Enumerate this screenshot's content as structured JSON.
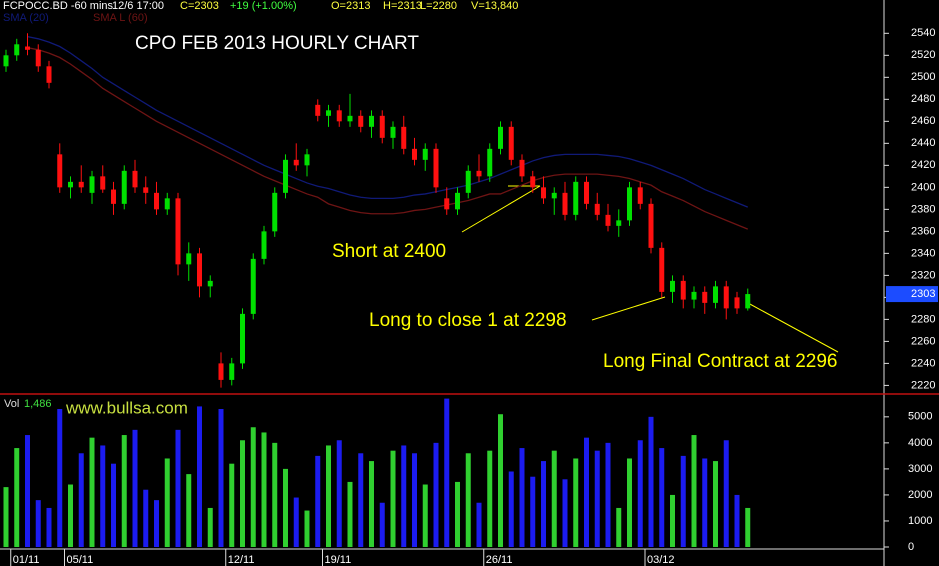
{
  "chart_data": [
    {
      "type": "candlestick",
      "title": "CPO FEB 2013 HOURLY CHART",
      "header": {
        "symbol": "FCPOCC.BD -60 mins",
        "time": "12/6 17:00",
        "close": "C=2303",
        "change": "+19 (+1.00%)",
        "open": "O=2313",
        "high": "H=2313",
        "low": "L=2280",
        "volume": "V=13,840"
      },
      "annotations": [
        "Short at 2400",
        "Long to close 1 at 2298",
        "Long Final Contract at 2296",
        "www.bullsa.com"
      ],
      "last_price": 2303,
      "up_color": "#00e000",
      "down_color": "#ff1010",
      "ylim": [
        2214,
        2563
      ],
      "yticks": [
        2220,
        2240,
        2260,
        2280,
        2300,
        2320,
        2340,
        2360,
        2380,
        2400,
        2420,
        2440,
        2460,
        2480,
        2500,
        2520,
        2540
      ],
      "open": [
        2510,
        2520,
        2528,
        2525,
        2510,
        2430,
        2400,
        2405,
        2395,
        2410,
        2398,
        2385,
        2415,
        2400,
        2395,
        2380,
        2390,
        2330,
        2340,
        2310,
        2240,
        2225,
        2240,
        2285,
        2335,
        2360,
        2395,
        2425,
        2420,
        2475,
        2465,
        2470,
        2460,
        2465,
        2455,
        2465,
        2445,
        2455,
        2435,
        2425,
        2435,
        2390,
        2380,
        2395,
        2415,
        2410,
        2435,
        2455,
        2425,
        2410,
        2400,
        2390,
        2395,
        2375,
        2405,
        2385,
        2375,
        2365,
        2370,
        2400,
        2385,
        2345,
        2305,
        2315,
        2298,
        2305,
        2295,
        2310,
        2300,
        2290
      ],
      "high": [
        2525,
        2535,
        2540,
        2530,
        2515,
        2440,
        2410,
        2420,
        2415,
        2420,
        2405,
        2420,
        2425,
        2410,
        2405,
        2395,
        2395,
        2350,
        2345,
        2320,
        2250,
        2245,
        2290,
        2340,
        2365,
        2400,
        2430,
        2440,
        2435,
        2480,
        2475,
        2475,
        2485,
        2470,
        2470,
        2470,
        2460,
        2465,
        2445,
        2440,
        2440,
        2400,
        2400,
        2420,
        2430,
        2440,
        2460,
        2460,
        2430,
        2415,
        2410,
        2400,
        2405,
        2410,
        2410,
        2395,
        2385,
        2380,
        2405,
        2405,
        2390,
        2350,
        2320,
        2320,
        2310,
        2310,
        2315,
        2315,
        2305,
        2308
      ],
      "low": [
        2505,
        2515,
        2520,
        2505,
        2490,
        2395,
        2390,
        2395,
        2385,
        2395,
        2375,
        2380,
        2395,
        2385,
        2375,
        2375,
        2320,
        2315,
        2300,
        2300,
        2218,
        2220,
        2235,
        2280,
        2330,
        2355,
        2390,
        2415,
        2410,
        2460,
        2455,
        2455,
        2455,
        2450,
        2445,
        2440,
        2435,
        2430,
        2420,
        2415,
        2395,
        2375,
        2375,
        2390,
        2405,
        2405,
        2430,
        2420,
        2405,
        2395,
        2385,
        2375,
        2370,
        2370,
        2380,
        2370,
        2360,
        2355,
        2365,
        2380,
        2340,
        2300,
        2295,
        2290,
        2290,
        2285,
        2290,
        2280,
        2285,
        2288
      ],
      "close": [
        2520,
        2530,
        2525,
        2510,
        2495,
        2400,
        2405,
        2400,
        2410,
        2398,
        2385,
        2415,
        2400,
        2395,
        2380,
        2390,
        2330,
        2340,
        2310,
        2315,
        2225,
        2240,
        2285,
        2335,
        2360,
        2395,
        2425,
        2420,
        2430,
        2465,
        2470,
        2460,
        2465,
        2455,
        2465,
        2445,
        2455,
        2435,
        2425,
        2435,
        2400,
        2380,
        2395,
        2415,
        2410,
        2435,
        2455,
        2425,
        2410,
        2400,
        2390,
        2395,
        2375,
        2405,
        2385,
        2375,
        2365,
        2370,
        2400,
        2385,
        2345,
        2305,
        2315,
        2298,
        2305,
        2295,
        2310,
        2290,
        2290,
        2303
      ],
      "series": [
        {
          "name": "SMA (20)",
          "color": "#101a78",
          "values": [
            null,
            null,
            2537,
            2535,
            2532,
            2528,
            2522,
            2515,
            2508,
            2500,
            2494,
            2488,
            2482,
            2476,
            2470,
            2465,
            2460,
            2455,
            2450,
            2445,
            2440,
            2435,
            2430,
            2425,
            2420,
            2416,
            2412,
            2408,
            2404,
            2401,
            2399,
            2396,
            2393,
            2391,
            2390,
            2390,
            2390,
            2391,
            2393,
            2394,
            2396,
            2398,
            2400,
            2402,
            2405,
            2408,
            2412,
            2416,
            2420,
            2424,
            2427,
            2429,
            2430,
            2430,
            2430,
            2430,
            2429,
            2428,
            2426,
            2423,
            2420,
            2416,
            2412,
            2408,
            2403,
            2398,
            2394,
            2390,
            2386,
            2382
          ]
        },
        {
          "name": "SMA L (60)",
          "color": "#6e1414",
          "values": [
            null,
            null,
            2527,
            2525,
            2522,
            2518,
            2512,
            2505,
            2498,
            2490,
            2484,
            2478,
            2472,
            2466,
            2460,
            2455,
            2450,
            2445,
            2440,
            2435,
            2430,
            2425,
            2420,
            2415,
            2410,
            2406,
            2402,
            2398,
            2394,
            2391,
            2385,
            2382,
            2379,
            2377,
            2376,
            2376,
            2376,
            2377,
            2379,
            2380,
            2382,
            2384,
            2386,
            2388,
            2391,
            2394,
            2394,
            2398,
            2402,
            2406,
            2409,
            2411,
            2412,
            2412,
            2412,
            2412,
            2411,
            2410,
            2408,
            2405,
            2402,
            2396,
            2392,
            2388,
            2383,
            2378,
            2374,
            2370,
            2366,
            2362
          ]
        }
      ]
    },
    {
      "type": "bar",
      "label": "Vol",
      "last_value": "1,486",
      "up_color": "#30d030",
      "down_color": "#1c1cf0",
      "ylim": [
        0,
        5800
      ],
      "yticks": [
        0,
        1000,
        2000,
        3000,
        4000,
        5000
      ],
      "categories": [
        null,
        "01/11",
        null,
        null,
        null,
        null,
        "05/11",
        null,
        null,
        null,
        null,
        null,
        null,
        null,
        null,
        null,
        null,
        null,
        null,
        null,
        null,
        "12/11",
        null,
        null,
        null,
        null,
        null,
        null,
        null,
        null,
        "19/11",
        null,
        null,
        null,
        null,
        null,
        null,
        null,
        null,
        null,
        null,
        null,
        null,
        null,
        null,
        "26/11",
        null,
        null,
        null,
        null,
        null,
        null,
        null,
        null,
        null,
        null,
        null,
        null,
        null,
        null,
        "03/12",
        null,
        null,
        null,
        null,
        null,
        null,
        null,
        null,
        null
      ],
      "values": [
        2300,
        3800,
        4300,
        1800,
        1500,
        5300,
        2400,
        3600,
        4200,
        3900,
        3200,
        4300,
        4500,
        2200,
        1800,
        3400,
        4500,
        2800,
        5400,
        1500,
        5300,
        3200,
        4100,
        4600,
        4400,
        4000,
        3000,
        1900,
        1400,
        3500,
        3900,
        4100,
        2500,
        3600,
        3300,
        1700,
        3700,
        3900,
        3600,
        2400,
        4000,
        5700,
        2500,
        3600,
        1700,
        3700,
        5100,
        2900,
        3800,
        2700,
        3300,
        3700,
        2600,
        3400,
        4200,
        3700,
        4000,
        1500,
        3400,
        4100,
        5000,
        3800,
        2000,
        3500,
        4300,
        3400,
        3300,
        4100,
        2000,
        1500
      ]
    }
  ]
}
